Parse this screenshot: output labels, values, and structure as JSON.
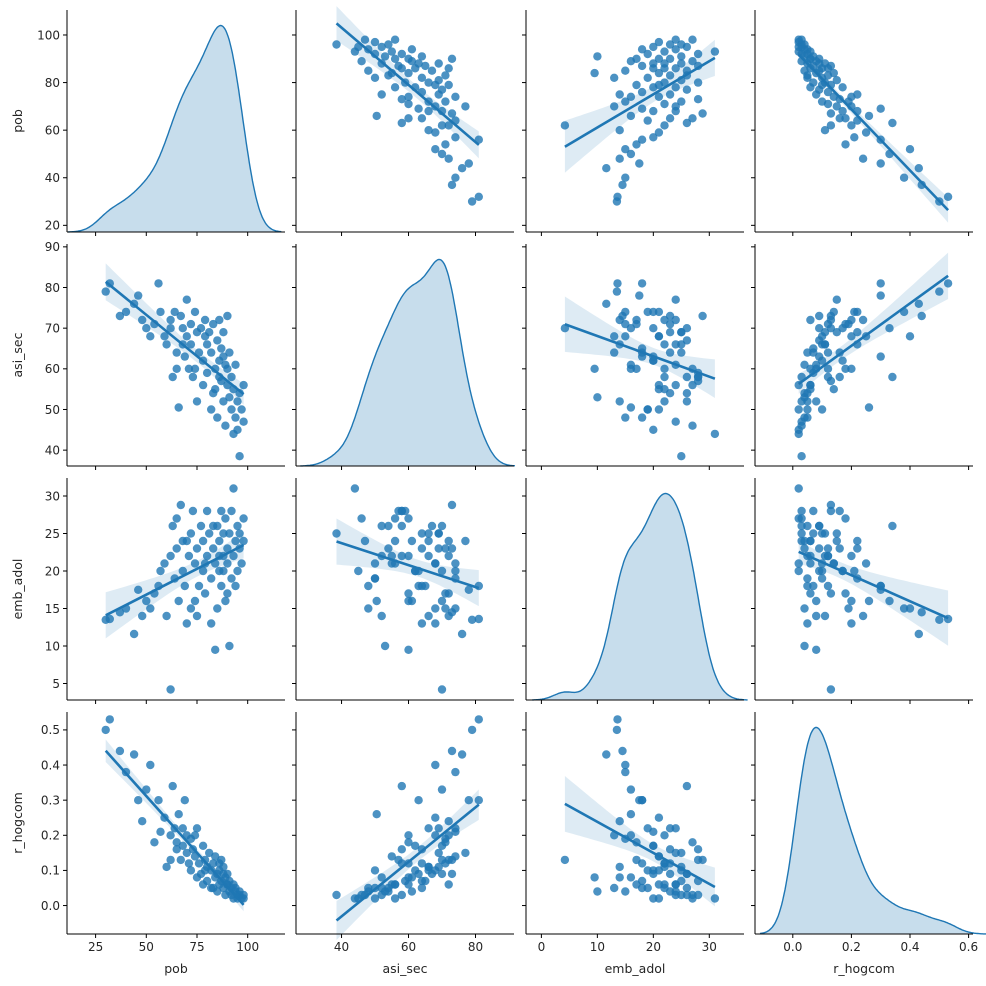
{
  "chart_data": {
    "type": "pairplot",
    "panels": "scatter with linear regression fit and 95% CI off-diagonal; KDE density on diagonal",
    "color": "#1f77b4",
    "variables": [
      {
        "name": "pob",
        "range": [
          10.9,
          118.4
        ],
        "ticks": [
          25,
          50,
          75,
          100
        ],
        "tick_labels": [
          "25",
          "50",
          "75",
          "100"
        ],
        "row_range": [
          17.2,
          110.5
        ],
        "row_ticks": [
          20,
          40,
          60,
          80,
          100
        ],
        "row_tick_labels": [
          "20",
          "40",
          "60",
          "80",
          "100"
        ]
      },
      {
        "name": "asi_sec",
        "range": [
          26.4,
          91.5
        ],
        "ticks": [
          40,
          60,
          80
        ],
        "tick_labels": [
          "40",
          "60",
          "80"
        ],
        "row_range": [
          36.1,
          90.7
        ],
        "row_ticks": [
          40,
          50,
          60,
          70,
          80,
          90
        ],
        "row_tick_labels": [
          "40",
          "50",
          "60",
          "70",
          "80",
          "90"
        ]
      },
      {
        "name": "emb_adol",
        "range": [
          -2.75,
          36.2
        ],
        "ticks": [
          0,
          10,
          20,
          30
        ],
        "tick_labels": [
          "0",
          "10",
          "20",
          "30"
        ],
        "row_range": [
          2.8,
          32.4
        ],
        "row_ticks": [
          5,
          10,
          15,
          20,
          25,
          30
        ],
        "row_tick_labels": [
          "5",
          "10",
          "15",
          "20",
          "25",
          "30"
        ]
      },
      {
        "name": "r_hogcom",
        "range": [
          -0.129,
          0.615
        ],
        "ticks": [
          0.0,
          0.2,
          0.4,
          0.6
        ],
        "tick_labels": [
          "0.0",
          "0.2",
          "0.4",
          "0.6"
        ],
        "row_range": [
          -0.081,
          0.551
        ],
        "row_ticks": [
          0.0,
          0.1,
          0.2,
          0.3,
          0.4,
          0.5
        ],
        "row_tick_labels": [
          "0.0",
          "0.1",
          "0.2",
          "0.3",
          "0.4",
          "0.5"
        ]
      }
    ],
    "columns": [
      "pob",
      "asi_sec",
      "emb_adol",
      "r_hogcom"
    ],
    "records": [
      [
        30,
        79,
        13.5,
        0.5
      ],
      [
        32,
        81,
        13.6,
        0.53
      ],
      [
        37,
        73,
        14.5,
        0.44
      ],
      [
        40,
        74,
        15,
        0.38
      ],
      [
        44,
        76,
        11.6,
        0.43
      ],
      [
        46,
        78,
        17.5,
        0.3
      ],
      [
        48,
        72,
        14,
        0.24
      ],
      [
        50,
        70,
        16,
        0.33
      ],
      [
        52,
        68,
        15,
        0.4
      ],
      [
        54,
        71,
        17,
        0.18
      ],
      [
        56,
        81,
        18,
        0.3
      ],
      [
        57,
        74,
        20,
        0.21
      ],
      [
        59,
        68,
        21,
        0.25
      ],
      [
        60,
        66,
        14,
        0.11
      ],
      [
        62,
        70,
        4.2,
        0.13
      ],
      [
        62,
        72,
        22,
        0.2
      ],
      [
        63,
        58,
        26,
        0.34
      ],
      [
        64,
        74,
        19,
        0.22
      ],
      [
        65,
        64,
        23,
        0.16
      ],
      [
        66,
        50.5,
        16,
        0.26
      ],
      [
        67,
        73,
        28.8,
        0.13
      ],
      [
        68,
        70,
        20,
        0.17
      ],
      [
        69,
        63,
        18,
        0.3
      ],
      [
        70,
        77,
        24,
        0.15
      ],
      [
        70,
        68,
        13,
        0.2
      ],
      [
        71,
        60,
        22,
        0.12
      ],
      [
        72,
        66,
        25,
        0.1
      ],
      [
        72,
        71,
        15,
        0.19
      ],
      [
        73,
        58,
        28,
        0.16
      ],
      [
        74,
        74,
        21,
        0.14
      ],
      [
        75,
        52,
        14,
        0.08
      ],
      [
        75,
        69,
        23,
        0.22
      ],
      [
        76,
        64,
        18,
        0.12
      ],
      [
        77,
        70,
        26,
        0.09
      ],
      [
        78,
        62,
        20,
        0.17
      ],
      [
        78,
        56,
        24,
        0.06
      ],
      [
        79,
        72,
        17,
        0.13
      ],
      [
        80,
        66,
        22,
        0.11
      ],
      [
        80,
        59,
        28,
        0.07
      ],
      [
        81,
        69,
        25,
        0.15
      ],
      [
        82,
        50,
        19,
        0.1
      ],
      [
        82,
        64,
        13,
        0.05
      ],
      [
        83,
        71,
        23,
        0.12
      ],
      [
        84,
        60,
        9.5,
        0.08
      ],
      [
        84,
        55,
        21,
        0.14
      ],
      [
        85,
        67,
        26,
        0.09
      ],
      [
        85,
        48,
        15,
        0.04
      ],
      [
        86,
        62,
        20,
        0.1
      ],
      [
        86,
        72,
        24,
        0.06
      ],
      [
        87,
        57,
        28,
        0.13
      ],
      [
        87,
        65,
        18,
        0.07
      ],
      [
        88,
        52,
        22,
        0.05
      ],
      [
        88,
        69,
        25,
        0.11
      ],
      [
        89,
        61,
        16,
        0.08
      ],
      [
        89,
        46,
        27,
        0.03
      ],
      [
        90,
        56,
        21,
        0.06
      ],
      [
        90,
        73,
        23,
        0.09
      ],
      [
        91,
        53,
        10,
        0.04
      ],
      [
        91,
        64,
        25,
        0.07
      ],
      [
        92,
        50,
        19,
        0.05
      ],
      [
        92,
        58,
        28,
        0.03
      ],
      [
        93,
        44,
        31,
        0.02
      ],
      [
        93,
        55,
        22,
        0.06
      ],
      [
        94,
        61,
        24,
        0.04
      ],
      [
        94,
        48,
        18,
        0.05
      ],
      [
        95,
        52,
        26,
        0.03
      ],
      [
        95,
        45,
        20,
        0.02
      ],
      [
        96,
        54,
        23,
        0.04
      ],
      [
        96,
        38.5,
        25,
        0.03
      ],
      [
        97,
        50,
        21,
        0.02
      ],
      [
        98,
        47,
        24,
        0.03
      ],
      [
        98,
        56,
        27,
        0.02
      ],
      [
        65,
        60,
        27,
        0.18
      ],
      [
        68,
        66,
        24,
        0.22
      ],
      [
        74,
        60,
        16,
        0.2
      ],
      [
        79,
        68,
        21,
        0.1
      ],
      [
        83,
        54,
        26,
        0.05
      ],
      [
        86,
        58,
        22,
        0.12
      ],
      [
        88,
        63,
        20,
        0.09
      ],
      [
        90,
        60,
        17,
        0.06
      ]
    ],
    "grid": false,
    "legend": "none"
  }
}
